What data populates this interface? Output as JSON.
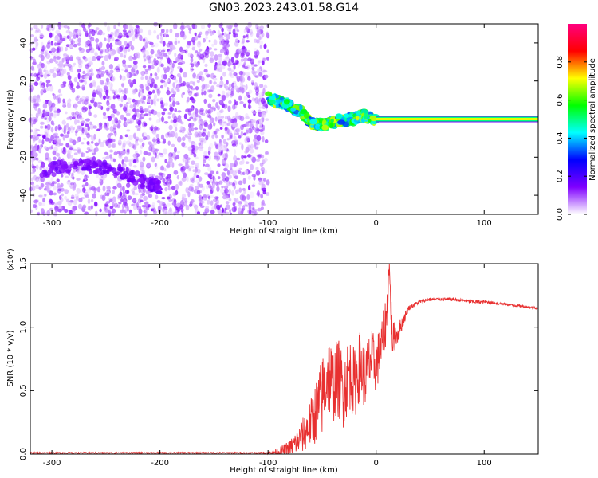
{
  "figure": {
    "title": "GN03.2023.243.01.58.G14"
  },
  "chart_data": [
    {
      "type": "heatmap",
      "title": "GN03.2023.243.01.58.G14",
      "xlabel": "Height of straight line (km)",
      "ylabel": "Frequency (Hz)",
      "xlim": [
        -320,
        150
      ],
      "ylim": [
        -50,
        50
      ],
      "xticks": [
        -300,
        -200,
        -100,
        0,
        100
      ],
      "xtick_labels": [
        "-300",
        "-200",
        "-100",
        "0",
        "100"
      ],
      "yticks": [
        -40,
        -20,
        0,
        20,
        40
      ],
      "ytick_labels": [
        "-40",
        "-20",
        "0",
        "20",
        "40"
      ],
      "colorbar": {
        "label": "Normalized spectral amplitude",
        "range": [
          0,
          1
        ],
        "ticks": [
          0.0,
          0.2,
          0.4,
          0.6,
          0.8
        ],
        "tick_labels": [
          "0.0",
          "0.2",
          "0.4",
          "0.6",
          "0.8"
        ],
        "colormap": [
          "#ffffff",
          "#7f00ff",
          "#0000ff",
          "#00ffff",
          "#00ff00",
          "#ffff00",
          "#ff0000",
          "#ff0080"
        ]
      },
      "regions": [
        {
          "name": "noise",
          "x": [
            -320,
            -100
          ],
          "freq": [
            -50,
            50
          ],
          "amplitude": [
            0.02,
            0.15
          ]
        },
        {
          "name": "low-frequency trace",
          "points": [
            [
              -310,
              -27
            ],
            [
              -270,
              -24
            ],
            [
              -240,
              -27
            ],
            [
              -210,
              -34
            ],
            [
              -200,
              -36
            ]
          ],
          "amplitude": 0.12
        },
        {
          "name": "descending signal",
          "points": [
            [
              -100,
              11
            ],
            [
              -85,
              8
            ],
            [
              -70,
              4
            ],
            [
              -60,
              -2
            ],
            [
              -50,
              -3
            ],
            [
              -35,
              -1
            ],
            [
              -20,
              0
            ],
            [
              -12,
              2
            ],
            [
              0,
              0
            ]
          ],
          "amplitude": [
            0.3,
            0.7
          ]
        },
        {
          "name": "steady carrier",
          "x": [
            0,
            150
          ],
          "freq": 0,
          "amplitude": 0.85
        }
      ]
    },
    {
      "type": "line",
      "xlabel": "Height of straight line (km)",
      "ylabel": "SNR (10 * v/v)",
      "y_multiplier": "(x10⁴)",
      "xlim": [
        -320,
        150
      ],
      "ylim": [
        0,
        1.5
      ],
      "xticks": [
        -300,
        -200,
        -100,
        0,
        100
      ],
      "xtick_labels": [
        "-300",
        "-200",
        "-100",
        "0",
        "100"
      ],
      "yticks": [
        0,
        0.5,
        1.0,
        1.5
      ],
      "ytick_labels": [
        "0.0",
        "0.5",
        "1.0",
        "1.5"
      ],
      "series_color": "#e83030",
      "series": [
        {
          "x": [
            -320,
            -250,
            -200,
            -150,
            -110,
            -100,
            -90,
            -80,
            -70,
            -60,
            -50,
            -45,
            -40,
            -35,
            -30,
            -25,
            -20,
            -15,
            -10,
            -5,
            0,
            5,
            10,
            12,
            15,
            20,
            25,
            30,
            40,
            50,
            60,
            70,
            80,
            90,
            100,
            110,
            120,
            130,
            140,
            150
          ],
          "y": [
            0.01,
            0.01,
            0.01,
            0.01,
            0.01,
            0.01,
            0.02,
            0.05,
            0.12,
            0.25,
            0.45,
            0.65,
            0.55,
            0.6,
            0.5,
            0.65,
            0.55,
            0.7,
            0.6,
            0.75,
            0.7,
            0.85,
            1.1,
            1.5,
            0.9,
            0.95,
            1.05,
            1.15,
            1.2,
            1.22,
            1.22,
            1.22,
            1.21,
            1.2,
            1.2,
            1.19,
            1.18,
            1.17,
            1.16,
            1.15
          ],
          "noise_amplitude": [
            0.005,
            0.005,
            0.005,
            0.005,
            0.005,
            0.01,
            0.03,
            0.06,
            0.12,
            0.2,
            0.32,
            0.35,
            0.3,
            0.32,
            0.3,
            0.3,
            0.28,
            0.28,
            0.25,
            0.25,
            0.22,
            0.2,
            0.2,
            0.1,
            0.15,
            0.08,
            0.05,
            0.02,
            0.015,
            0.015,
            0.012,
            0.012,
            0.012,
            0.015,
            0.012,
            0.01,
            0.01,
            0.01,
            0.01,
            0.01
          ]
        }
      ]
    }
  ]
}
